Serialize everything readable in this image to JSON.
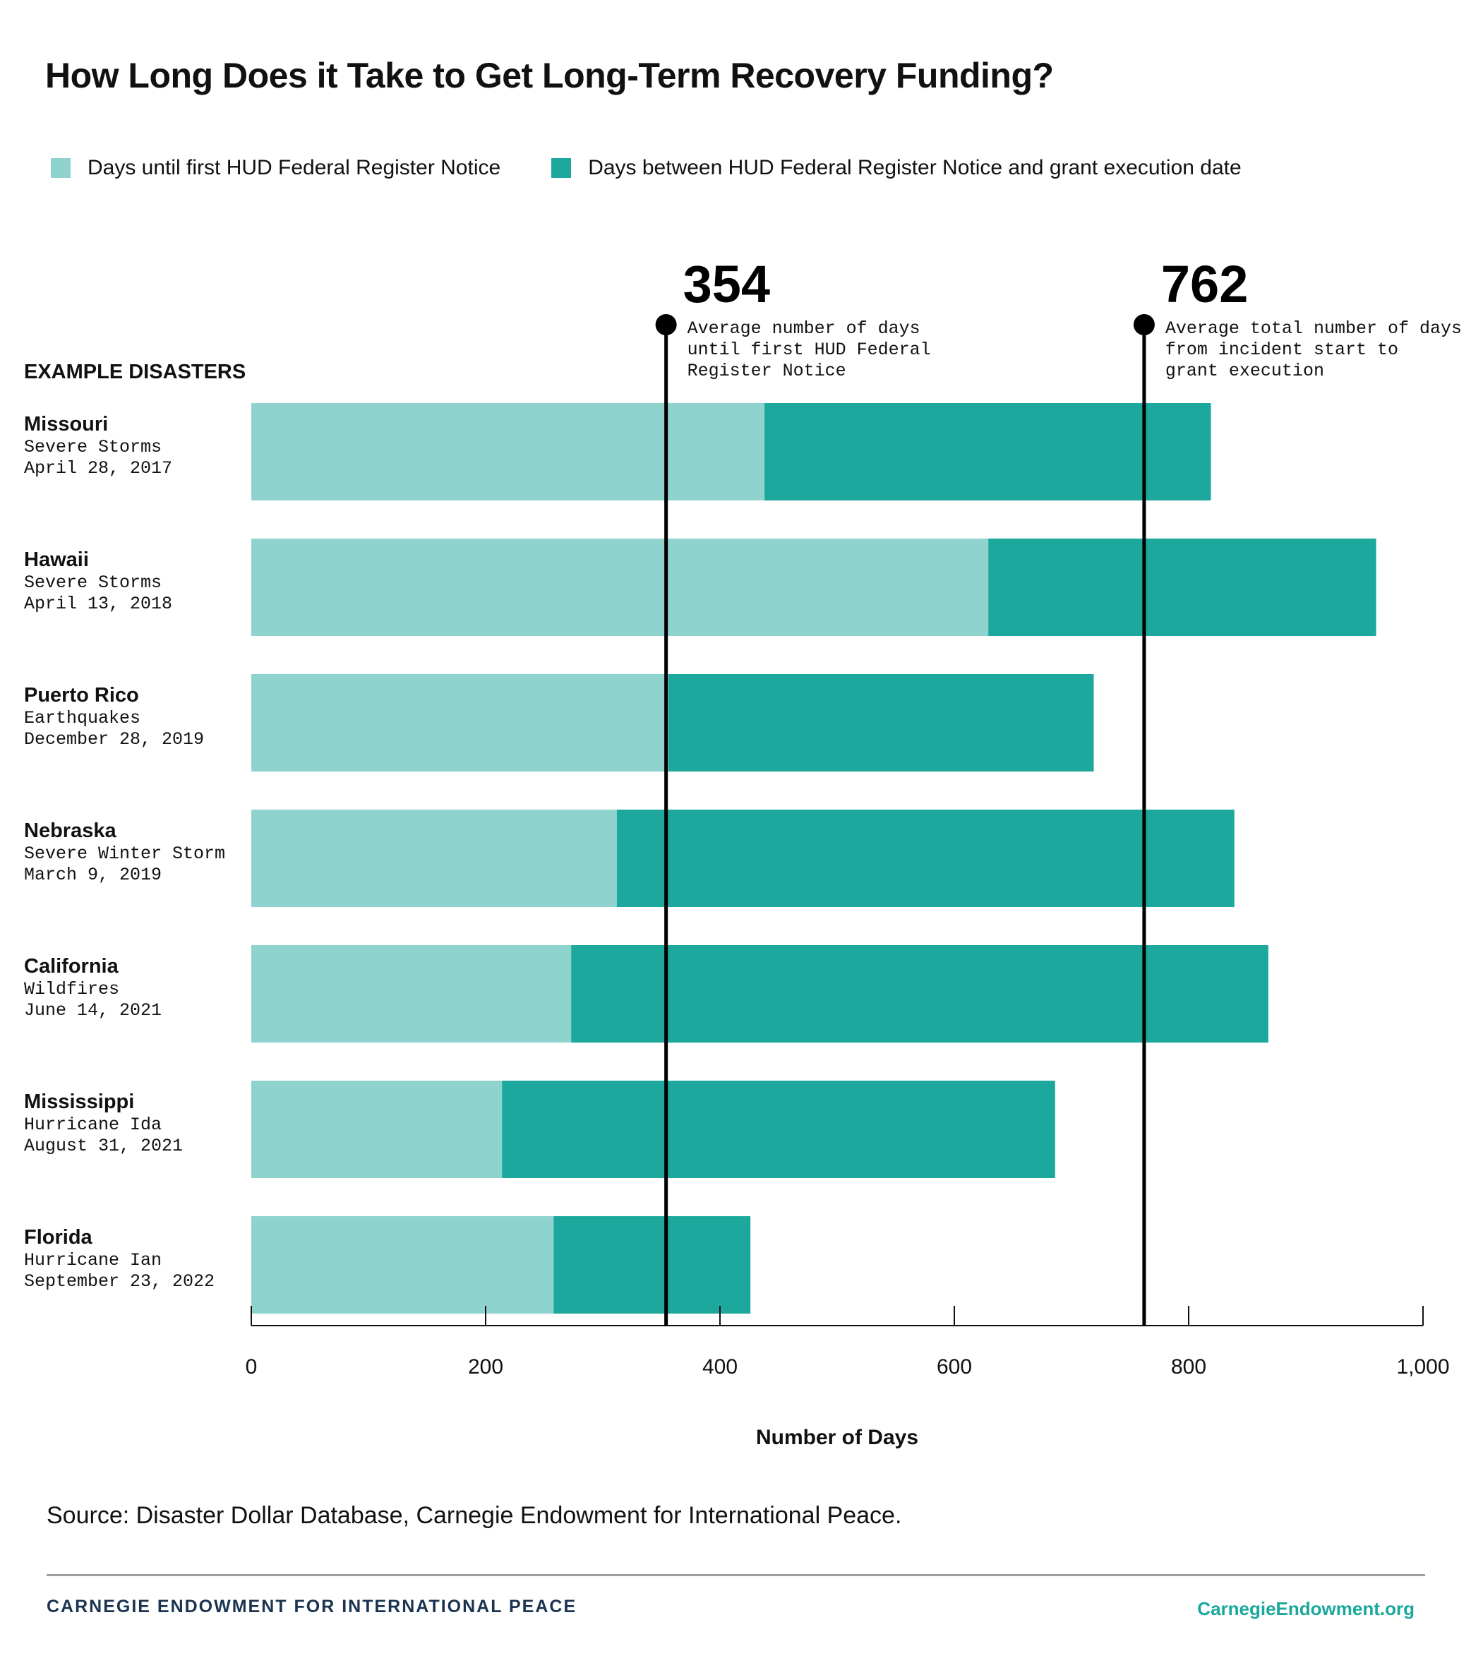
{
  "title": "How Long Does it Take to Get Long-Term Recovery Funding?",
  "legend": [
    {
      "label": "Days until first HUD Federal Register Notice",
      "color": "#8ed3cd"
    },
    {
      "label": "Days between HUD Federal Register Notice and grant execution date",
      "color": "#1ca89c"
    }
  ],
  "row_header": "EXAMPLE DISASTERS",
  "chart_data": {
    "type": "bar",
    "orientation": "horizontal",
    "stacked": true,
    "categories": [
      "Missouri",
      "Hawaii",
      "Puerto Rico",
      "Nebraska",
      "California",
      "Mississippi",
      "Florida"
    ],
    "category_details": [
      {
        "event": "Severe Storms",
        "date": "April 28, 2017"
      },
      {
        "event": "Severe Storms",
        "date": "April 13, 2018"
      },
      {
        "event": "Earthquakes",
        "date": "December 28, 2019"
      },
      {
        "event": "Severe Winter Storm",
        "date": "March 9, 2019"
      },
      {
        "event": "Wildfires",
        "date": "June 14, 2021"
      },
      {
        "event": "Hurricane Ida",
        "date": "August 31, 2021"
      },
      {
        "event": "Hurricane Ian",
        "date": "September 23, 2022"
      }
    ],
    "series": [
      {
        "name": "Days until first HUD Federal Register Notice",
        "values": [
          438,
          629,
          356,
          312,
          273,
          214,
          258
        ]
      },
      {
        "name": "Days between HUD Federal Register Notice and grant execution date",
        "values": [
          381,
          331,
          363,
          527,
          595,
          472,
          168
        ]
      }
    ],
    "xlabel": "Number of Days",
    "xlim": [
      0,
      1000
    ],
    "xticks": [
      0,
      200,
      400,
      600,
      800,
      1000
    ],
    "xtick_labels": [
      "0",
      "200",
      "400",
      "600",
      "800",
      "1,000"
    ],
    "reference_lines": [
      {
        "value": 354,
        "label": "354",
        "note_lines": [
          "Average number of days",
          "until first HUD Federal",
          "Register Notice"
        ]
      },
      {
        "value": 762,
        "label": "762",
        "note_lines": [
          "Average total number of days",
          "from incident start to",
          "grant execution"
        ]
      }
    ],
    "grid": false
  },
  "source": "Source: Disaster Dollar Database, Carnegie Endowment for International Peace.",
  "footer": {
    "org": "CARNEGIE ENDOWMENT FOR INTERNATIONAL PEACE",
    "url": "CarnegieEndowment.org"
  }
}
